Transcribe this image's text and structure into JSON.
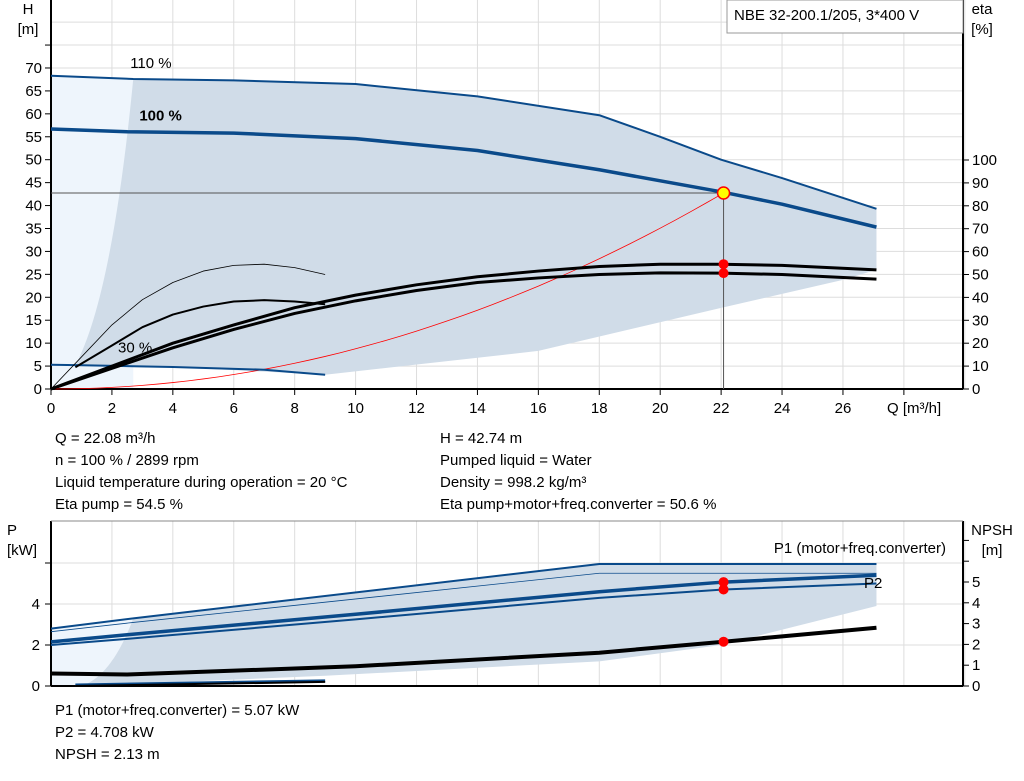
{
  "title": "NBE 32-200.1/205, 3*400 V",
  "chart_data": [
    {
      "type": "line",
      "title": "NBE 32-200.1/205, 3*400 V",
      "xlabel": "Q [m³/h]",
      "ylabel": "H [m]",
      "y2label": "eta [%]",
      "ylabel_parts": [
        "H",
        "[m]"
      ],
      "y2label_parts": [
        "eta",
        "[%]"
      ],
      "xlim": [
        0,
        30
      ],
      "ylim": [
        0,
        70
      ],
      "y2lim": [
        0,
        100
      ],
      "grid": true,
      "xticks": [
        0,
        2,
        4,
        6,
        8,
        10,
        12,
        14,
        16,
        18,
        20,
        22,
        24,
        26
      ],
      "yticks": [
        0,
        5,
        10,
        15,
        20,
        25,
        30,
        35,
        40,
        45,
        50,
        55,
        60,
        65,
        70
      ],
      "y2ticks": [
        0,
        10,
        20,
        30,
        40,
        50,
        60,
        70,
        80,
        90,
        100
      ],
      "curve_labels": [
        {
          "text": "110 %",
          "x": 2.6,
          "y": 70
        },
        {
          "text": "100 %",
          "x": 2.9,
          "y": 58.5
        },
        {
          "text": "30 %",
          "x": 2.2,
          "y": 8
        }
      ],
      "series": [
        {
          "name": "110 %",
          "axis": "H",
          "color": "#0a4a8a",
          "x": [
            0,
            2.7,
            6,
            10,
            14,
            18,
            20,
            22,
            24,
            27.1
          ],
          "y": [
            68.3,
            67.6,
            67.3,
            66.5,
            63.8,
            59.7,
            55,
            50,
            46,
            39.3
          ]
        },
        {
          "name": "100 %",
          "axis": "H",
          "color": "#0a4a8a",
          "x": [
            0,
            2.5,
            6,
            10,
            14,
            18,
            22,
            24,
            27.1
          ],
          "y": [
            56.7,
            56.1,
            55.8,
            54.6,
            52,
            47.8,
            43,
            40.3,
            35.3
          ]
        },
        {
          "name": "30 %",
          "axis": "H",
          "color": "#0a4a8a",
          "x": [
            0,
            0.8,
            4,
            7,
            9
          ],
          "y": [
            5.3,
            5.2,
            4.8,
            4.2,
            3.1
          ]
        },
        {
          "axis": "eta",
          "color": "#000",
          "x": [
            0,
            2,
            4,
            6,
            8,
            10,
            12,
            14,
            16,
            18,
            20,
            22,
            24,
            27.1
          ],
          "y": [
            0,
            10,
            20,
            28,
            35.5,
            41,
            45.5,
            49,
            51.5,
            53.5,
            54.5,
            54.5,
            54,
            52
          ]
        },
        {
          "axis": "eta",
          "color": "#000",
          "x": [
            0,
            2,
            4,
            6,
            8,
            10,
            12,
            14,
            16,
            18,
            20,
            22,
            24,
            27.1
          ],
          "y": [
            0,
            9,
            18,
            26,
            33,
            38.5,
            43,
            46.5,
            48.5,
            50,
            50.7,
            50.6,
            50,
            48
          ]
        },
        {
          "axis": "eta",
          "color": "#000",
          "x": [
            0,
            1,
            2,
            3,
            4,
            5,
            6,
            7,
            8,
            9
          ],
          "y": [
            0,
            14,
            28,
            39,
            46.5,
            51.5,
            54,
            54.5,
            53,
            50
          ]
        },
        {
          "axis": "eta",
          "color": "#000",
          "x": [
            0.8,
            2,
            3,
            4,
            5,
            6,
            7,
            8,
            9
          ],
          "y": [
            9.5,
            19,
            27,
            32.5,
            36,
            38.2,
            38.8,
            38.2,
            37
          ]
        }
      ],
      "operating_point": {
        "Q": 22.08,
        "H": 42.74,
        "eta_pump": 54.5,
        "eta_total": 50.6
      },
      "colors": {
        "curve": "#0a4a8a",
        "area": "#d0dce8",
        "area_light": "#eef5fc",
        "system": "#ff0000",
        "point": "#ffff00"
      }
    },
    {
      "type": "line",
      "ylabel": "P [kW]",
      "y2label": "NPSH [m]",
      "ylabel_parts": [
        "P",
        "[kW]"
      ],
      "y2label_parts": [
        "NPSH",
        "[m]"
      ],
      "ylim": [
        0,
        8
      ],
      "y2lim": [
        0,
        7.7
      ],
      "yticks": [
        0,
        2,
        4
      ],
      "y2ticks": [
        0,
        1,
        2,
        3,
        4,
        5
      ],
      "grid": true,
      "series": [
        {
          "name": "P1 (motor+freq.converter)",
          "axis": "P",
          "color": "#0a4a8a",
          "x": [
            0,
            2.5,
            10,
            18,
            22.08,
            27.1
          ],
          "y": [
            2.15,
            2.5,
            3.5,
            4.6,
            5.07,
            5.4
          ]
        },
        {
          "name": "P2",
          "axis": "P",
          "color": "#0a4a8a",
          "x": [
            0,
            2.5,
            10,
            18,
            22.08,
            27.1
          ],
          "y": [
            2.0,
            2.3,
            3.25,
            4.3,
            4.708,
            5.0
          ]
        },
        {
          "axis": "P",
          "color": "#0a4a8a",
          "x": [
            0,
            2.7,
            18,
            27.1
          ],
          "y": [
            2.8,
            3.3,
            5.95,
            5.95
          ]
        },
        {
          "axis": "P",
          "color": "#0a4a8a",
          "x": [
            0,
            2.7,
            18,
            27.1
          ],
          "y": [
            2.65,
            3.1,
            5.5,
            5.5
          ]
        },
        {
          "axis": "P",
          "color": "#0a4a8a",
          "x": [
            0.8,
            9
          ],
          "y": [
            0.05,
            0.25
          ]
        },
        {
          "name": "NPSH",
          "axis": "NPSH",
          "color": "#000",
          "x": [
            0,
            2.5,
            10,
            18,
            22.08,
            27.1
          ],
          "y": [
            0.6,
            0.55,
            0.95,
            1.6,
            2.13,
            2.8
          ]
        }
      ],
      "operating_point": {
        "P1": 5.07,
        "P2": 4.708,
        "NPSH": 2.13
      }
    }
  ],
  "info": {
    "q": "Q = 22.08 m³/h",
    "n": "n = 100 % / 2899 rpm",
    "temp": "Liquid temperature during operation = 20 °C",
    "eta_pump": "Eta pump = 54.5 %",
    "h": "H = 42.74 m",
    "liquid": "Pumped liquid = Water",
    "density": "Density = 998.2 kg/m³",
    "eta_total": "Eta pump+motor+freq.converter = 50.6 %",
    "p1": "P1 (motor+freq.converter) = 5.07 kW",
    "p2": "P2 = 4.708 kW",
    "npsh": "NPSH = 2.13 m"
  }
}
